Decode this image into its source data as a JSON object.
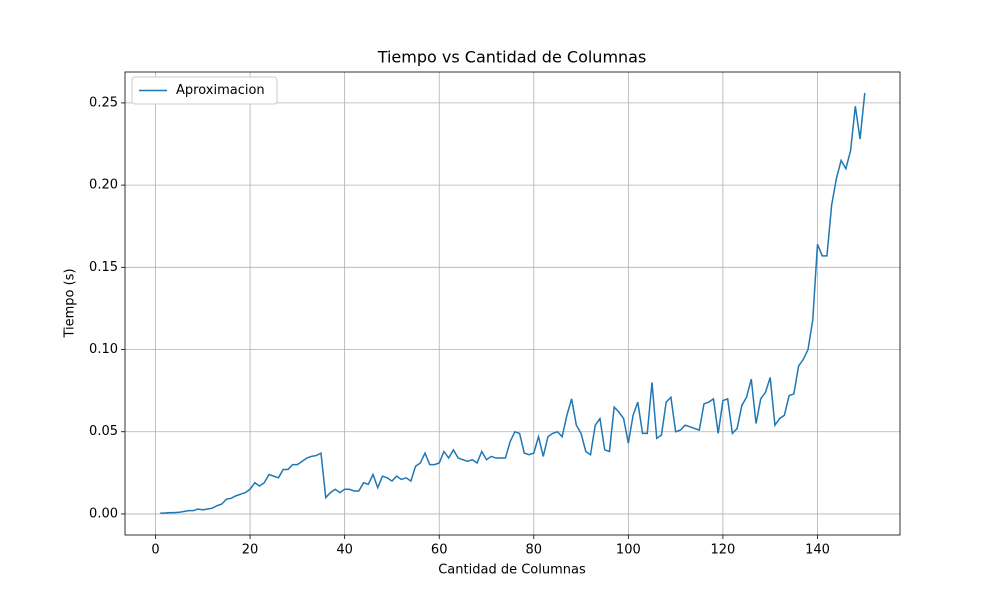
{
  "chart_data": {
    "type": "line",
    "title": "Tiempo vs Cantidad de Columnas",
    "x_label": "Cantidad de Columnas",
    "y_label": "Tiempo (s)",
    "x": [
      1,
      2,
      3,
      4,
      5,
      6,
      7,
      8,
      9,
      10,
      11,
      12,
      13,
      14,
      15,
      16,
      17,
      18,
      19,
      20,
      21,
      22,
      23,
      24,
      25,
      26,
      27,
      28,
      29,
      30,
      31,
      32,
      33,
      34,
      35,
      36,
      37,
      38,
      39,
      40,
      41,
      42,
      43,
      44,
      45,
      46,
      47,
      48,
      49,
      50,
      51,
      52,
      53,
      54,
      55,
      56,
      57,
      58,
      59,
      60,
      61,
      62,
      63,
      64,
      65,
      66,
      67,
      68,
      69,
      70,
      71,
      72,
      73,
      74,
      75,
      76,
      77,
      78,
      79,
      80,
      81,
      82,
      83,
      84,
      85,
      86,
      87,
      88,
      89,
      90,
      91,
      92,
      93,
      94,
      95,
      96,
      97,
      98,
      99,
      100,
      101,
      102,
      103,
      104,
      105,
      106,
      107,
      108,
      109,
      110,
      111,
      112,
      113,
      114,
      115,
      116,
      117,
      118,
      119,
      120,
      121,
      122,
      123,
      124,
      125,
      126,
      127,
      128,
      129,
      130,
      131,
      132,
      133,
      134,
      135,
      136,
      137,
      138,
      139,
      140,
      141,
      142,
      143,
      144,
      145,
      146,
      147,
      148,
      149,
      150
    ],
    "series": [
      {
        "name": "Aproximacion",
        "color": "#1f77b4",
        "values": [
          0.0005,
          0.0006,
          0.0008,
          0.0008,
          0.001,
          0.0015,
          0.002,
          0.002,
          0.003,
          0.0025,
          0.003,
          0.0035,
          0.005,
          0.006,
          0.009,
          0.0095,
          0.011,
          0.012,
          0.013,
          0.015,
          0.019,
          0.017,
          0.019,
          0.024,
          0.023,
          0.022,
          0.027,
          0.027,
          0.03,
          0.03,
          0.032,
          0.034,
          0.035,
          0.0355,
          0.037,
          0.01,
          0.013,
          0.015,
          0.013,
          0.015,
          0.015,
          0.014,
          0.014,
          0.019,
          0.018,
          0.024,
          0.016,
          0.023,
          0.022,
          0.02,
          0.023,
          0.021,
          0.022,
          0.02,
          0.029,
          0.031,
          0.037,
          0.03,
          0.03,
          0.031,
          0.038,
          0.034,
          0.039,
          0.034,
          0.033,
          0.032,
          0.033,
          0.031,
          0.038,
          0.033,
          0.035,
          0.034,
          0.034,
          0.034,
          0.044,
          0.05,
          0.049,
          0.037,
          0.036,
          0.037,
          0.047,
          0.035,
          0.047,
          0.049,
          0.05,
          0.047,
          0.06,
          0.07,
          0.054,
          0.049,
          0.038,
          0.036,
          0.054,
          0.058,
          0.039,
          0.038,
          0.065,
          0.062,
          0.058,
          0.043,
          0.06,
          0.068,
          0.049,
          0.049,
          0.08,
          0.046,
          0.048,
          0.068,
          0.071,
          0.05,
          0.051,
          0.054,
          0.053,
          0.052,
          0.051,
          0.067,
          0.068,
          0.07,
          0.049,
          0.069,
          0.07,
          0.049,
          0.052,
          0.066,
          0.071,
          0.082,
          0.055,
          0.07,
          0.074,
          0.083,
          0.054,
          0.058,
          0.06,
          0.072,
          0.073,
          0.09,
          0.094,
          0.1,
          0.118,
          0.164,
          0.157,
          0.157,
          0.188,
          0.204,
          0.215,
          0.21,
          0.221,
          0.248,
          0.228,
          0.256
        ]
      }
    ],
    "xlim": [
      -6.45,
      157.45
    ],
    "xticks": [
      0,
      20,
      40,
      60,
      80,
      100,
      120,
      140
    ],
    "ylim": [
      -0.0128,
      0.2688
    ],
    "yticks": [
      {
        "value": 0,
        "label": "0.00"
      },
      0.05,
      {
        "value": 0.1,
        "label": "0.10"
      },
      0.15,
      {
        "value": 0.2,
        "label": "0.20"
      },
      0.25
    ],
    "grid": true,
    "legend": "upper left"
  }
}
